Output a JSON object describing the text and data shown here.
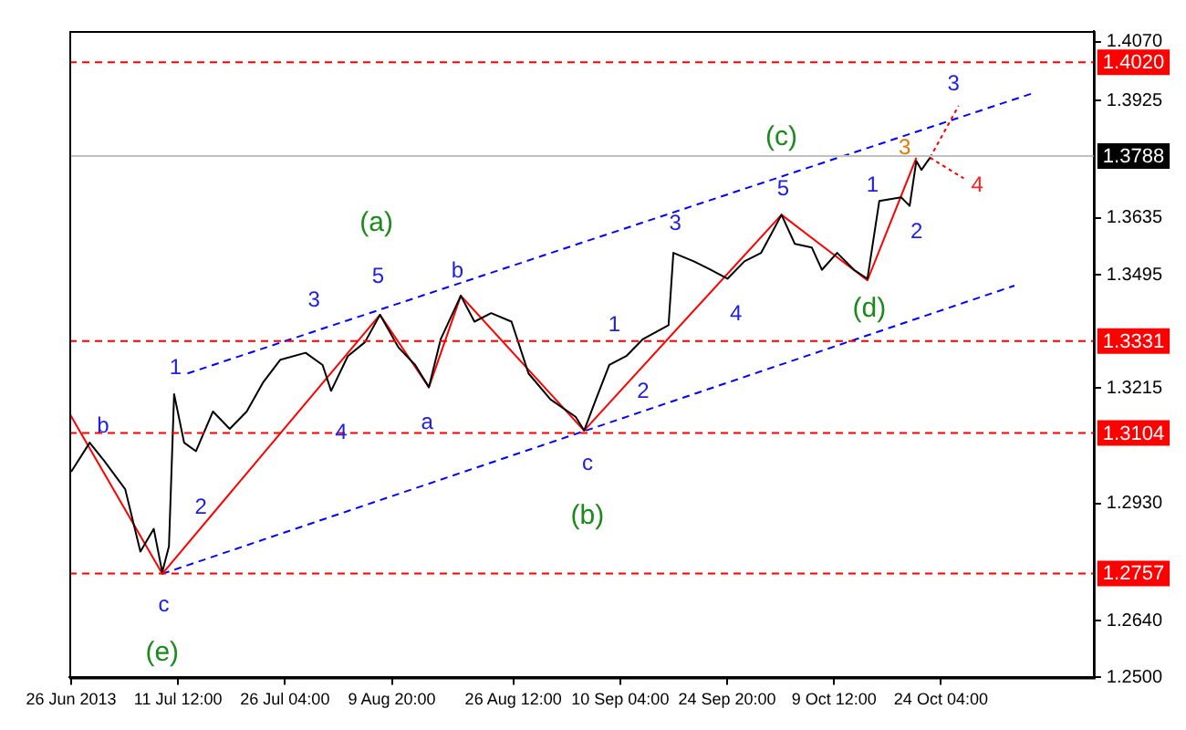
{
  "chart_data": {
    "type": "line",
    "xlim": [
      "2013-06-26T14:00",
      "2013-11-14T03:00"
    ],
    "xticks": [
      {
        "value": "2013-06-26T20:00",
        "label": "26 Jun 2013"
      },
      {
        "value": "2013-07-11T12:00",
        "label": "11 Jul 12:00"
      },
      {
        "value": "2013-07-26T04:00",
        "label": "26 Jul 04:00"
      },
      {
        "value": "2013-08-09T20:00",
        "label": "9 Aug 20:00"
      },
      {
        "value": "2013-08-26T12:00",
        "label": "26 Aug 12:00"
      },
      {
        "value": "2013-09-10T04:00",
        "label": "10 Sep 04:00"
      },
      {
        "value": "2013-09-24T20:00",
        "label": "24 Sep 20:00"
      },
      {
        "value": "2013-10-09T12:00",
        "label": "9 Oct 12:00"
      },
      {
        "value": "2013-10-24T04:00",
        "label": "24 Oct 04:00"
      }
    ],
    "ylim": [
      1.25,
      1.4097
    ],
    "yticks": [
      {
        "value": 1.25,
        "label": "1.2500"
      },
      {
        "value": 1.264,
        "label": "1.2640"
      },
      {
        "value": 1.293,
        "label": "1.2930"
      },
      {
        "value": 1.3215,
        "label": "1.3215"
      },
      {
        "value": 1.3495,
        "label": "1.3495"
      },
      {
        "value": 1.3635,
        "label": "1.3635"
      },
      {
        "value": 1.3925,
        "label": "1.3925"
      },
      {
        "value": 1.407,
        "label": "1.4070"
      }
    ],
    "grid": false,
    "legend": false,
    "series": [
      {
        "color": "#000000",
        "line_style": "solid",
        "x": [
          "2013-06-26T20:00",
          "2013-06-29T09:00",
          "2013-07-01T06:00",
          "2013-07-04T06:00",
          "2013-07-06T08:00",
          "2013-07-08T04:00",
          "2013-07-09T08:00",
          "2013-07-10T06:00",
          "2013-07-10T23:00",
          "2013-07-12T08:00",
          "2013-07-13T23:00",
          "2013-07-16T07:00",
          "2013-07-18T14:00",
          "2013-07-20T22:00",
          "2013-07-23T05:00",
          "2013-07-25T13:00",
          "2013-07-29T00:00",
          "2013-07-31T08:00",
          "2013-08-01T12:00",
          "2013-08-03T19:00",
          "2013-08-06T03:00",
          "2013-08-08T05:00",
          "2013-08-10T18:00",
          "2013-08-13T01:00",
          "2013-08-14T22:00",
          "2013-08-16T13:00",
          "2013-08-19T07:00",
          "2013-08-21T04:00",
          "2013-08-23T11:00",
          "2013-08-26T06:00",
          "2013-08-28T14:00",
          "2013-08-31T14:00",
          "2013-09-04T01:00",
          "2013-09-05T05:00",
          "2013-09-06T20:00",
          "2013-09-08T16:00",
          "2013-09-11T00:00",
          "2013-09-13T07:00",
          "2013-09-16T19:00",
          "2013-09-17T11:00",
          "2013-09-20T06:00",
          "2013-09-22T14:00",
          "2013-09-24T21:00",
          "2013-09-27T05:00",
          "2013-09-29T12:00",
          "2013-10-02T07:00",
          "2013-10-04T03:00",
          "2013-10-06T11:00",
          "2013-10-07T20:00",
          "2013-10-09T22:00",
          "2013-10-12T06:00",
          "2013-10-14T02:00",
          "2013-10-15T17:00",
          "2013-10-18T17:00",
          "2013-10-19T21:00",
          "2013-10-20T19:00",
          "2013-10-21T12:00",
          "2013-10-22T16:00"
        ],
        "values": [
          1.3008,
          1.308,
          1.3038,
          1.2965,
          1.2811,
          1.2867,
          1.276,
          1.2824,
          1.32,
          1.308,
          1.3059,
          1.3157,
          1.3114,
          1.3157,
          1.323,
          1.3285,
          1.3302,
          1.3272,
          1.3208,
          1.3294,
          1.3328,
          1.3396,
          1.3315,
          1.3272,
          1.3217,
          1.3336,
          1.3443,
          1.3379,
          1.34,
          1.3379,
          1.3251,
          1.3187,
          1.3144,
          1.311,
          1.3187,
          1.3272,
          1.3294,
          1.3336,
          1.337,
          1.3549,
          1.3528,
          1.3507,
          1.3485,
          1.3528,
          1.3549,
          1.3643,
          1.3571,
          1.3562,
          1.3507,
          1.3549,
          1.3507,
          1.3485,
          1.3677,
          1.3686,
          1.3665,
          1.3776,
          1.3754,
          1.3784
        ]
      },
      {
        "color": "#ff0000",
        "line_style": "solid",
        "x": [
          "2013-06-26T14:00",
          "2013-07-09T08:00",
          "2013-08-08T05:00",
          "2013-08-14T22:00",
          "2013-08-19T07:00",
          "2013-09-05T05:00",
          "2013-10-02T07:00",
          "2013-10-14T02:00",
          "2013-10-20T19:00"
        ],
        "values": [
          1.3153,
          1.2756,
          1.3396,
          1.3217,
          1.3443,
          1.311,
          1.3643,
          1.3481,
          1.3784
        ]
      },
      {
        "color": "#ff0000",
        "line_style": "dotted",
        "x": [
          "2013-10-22T16:00",
          "2013-10-26T14:00"
        ],
        "values": [
          1.3784,
          1.3912
        ]
      },
      {
        "color": "#ff0000",
        "line_style": "dotted",
        "x": [
          "2013-10-22T16:00",
          "2013-10-27T07:00"
        ],
        "values": [
          1.3784,
          1.3733
        ]
      },
      {
        "color": "#0000ff",
        "line_style": "dashed",
        "x": [
          "2013-07-12T19:00",
          "2013-11-05T13:00"
        ],
        "values": [
          1.3251,
          1.3942
        ]
      },
      {
        "color": "#0000ff",
        "line_style": "dashed",
        "x": [
          "2013-07-09T08:00",
          "2013-11-03T06:00"
        ],
        "values": [
          1.2756,
          1.3468
        ]
      }
    ],
    "ref_lines": [
      {
        "axis": "y",
        "value": 1.402,
        "label": "1.4020",
        "color": "#ff0000",
        "line_style": "dashed"
      },
      {
        "axis": "y",
        "value": 1.3788,
        "label": "1.3788",
        "color": "#c0c0c0",
        "line_style": "solid"
      },
      {
        "axis": "y",
        "value": 1.3331,
        "label": "1.3331",
        "color": "#ff0000",
        "line_style": "dashed"
      },
      {
        "axis": "y",
        "value": 1.3104,
        "label": "1.3104",
        "color": "#ff0000",
        "line_style": "dashed"
      },
      {
        "axis": "y",
        "value": 1.2757,
        "label": "1.2757",
        "color": "#ff0000",
        "line_style": "dashed"
      }
    ],
    "annotations": [
      "(a)",
      "(b)",
      "(c)",
      "(d)",
      "(e)",
      "b",
      "c",
      "1",
      "2",
      "3",
      "4",
      "5",
      "a",
      "b",
      "c",
      "1",
      "2",
      "3",
      "4",
      "5",
      "1",
      "2",
      "3",
      "3",
      "4"
    ]
  }
}
